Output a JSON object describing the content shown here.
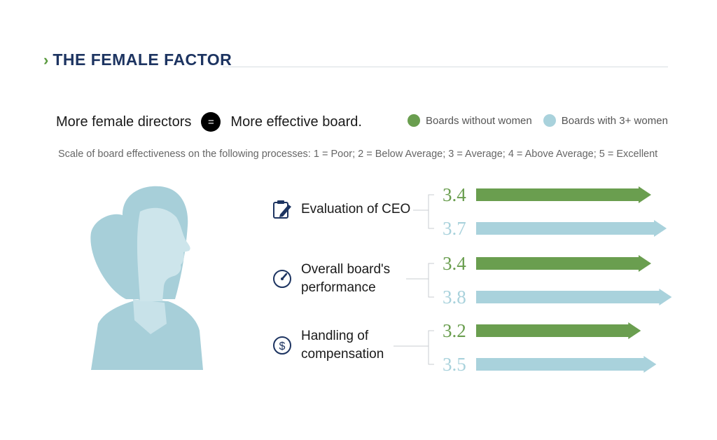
{
  "header": {
    "title": "THE FEMALE FACTOR",
    "chevron": "›"
  },
  "tagline": {
    "left": "More female directors",
    "equals": "=",
    "right": "More effective board."
  },
  "scale_note": "Scale of board effectiveness on the following processes: 1 = Poor; 2 = Below Average; 3 = Average; 4 = Above Average; 5 = Excellent",
  "colors": {
    "without": "#6a9e4f",
    "with": "#a9d2dc",
    "title": "#1d3461"
  },
  "chart_data": {
    "type": "bar",
    "orientation": "horizontal",
    "categories": [
      {
        "line1": "Evaluation of CEO",
        "line2": "",
        "icon": "clipboard-pencil-icon"
      },
      {
        "line1": "Overall board's",
        "line2": "performance",
        "icon": "speedometer-icon"
      },
      {
        "line1": "Handling of",
        "line2": "compensation",
        "icon": "dollar-icon"
      }
    ],
    "series": [
      {
        "name": "Boards without women",
        "values": [
          3.4,
          3.4,
          3.2
        ],
        "labels": [
          "3.4",
          "3.4",
          "3.2"
        ]
      },
      {
        "name": "Boards with 3+ women",
        "values": [
          3.7,
          3.8,
          3.5
        ],
        "labels": [
          "3.7",
          "3.8",
          "3.5"
        ]
      }
    ],
    "scale_range": [
      1,
      5
    ],
    "legend_position": "top-right"
  }
}
